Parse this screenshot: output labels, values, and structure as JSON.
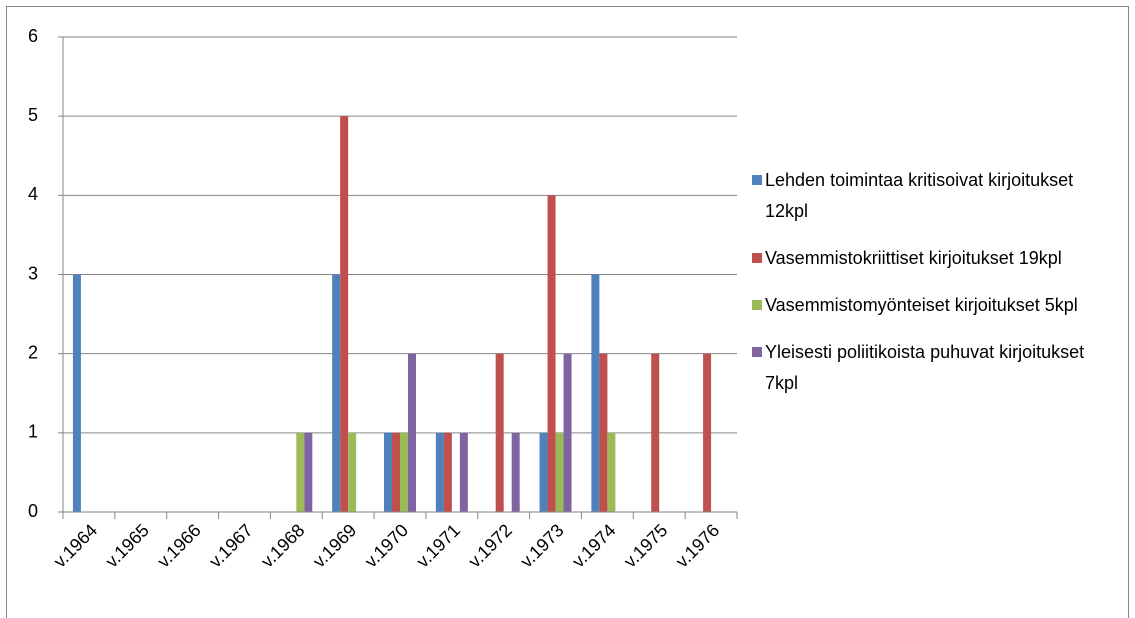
{
  "chart_data": {
    "type": "bar",
    "categories": [
      "v.1964",
      "v.1965",
      "v.1966",
      "v.1967",
      "v.1968",
      "v.1969",
      "v.1970",
      "v.1971",
      "v.1972",
      "v.1973",
      "v.1974",
      "v.1975",
      "v.1976"
    ],
    "series": [
      {
        "name": "Lehden toimintaa kritisoivat kirjoitukset 12kpl",
        "color": "#4f81bd",
        "values": [
          3,
          0,
          0,
          0,
          0,
          3,
          1,
          1,
          0,
          1,
          3,
          0,
          0
        ]
      },
      {
        "name": "Vasemmistokriittiset kirjoitukset 19kpl",
        "color": "#c0504d",
        "values": [
          0,
          0,
          0,
          0,
          0,
          5,
          1,
          1,
          2,
          4,
          2,
          2,
          2
        ]
      },
      {
        "name": "Vasemmistomyönteiset kirjoitukset 5kpl",
        "color": "#9bbb59",
        "values": [
          0,
          0,
          0,
          0,
          1,
          1,
          1,
          0,
          0,
          1,
          1,
          0,
          0
        ]
      },
      {
        "name": "Yleisesti poliitikoista puhuvat kirjoitukset 7kpl",
        "color": "#8064a2",
        "values": [
          0,
          0,
          0,
          0,
          1,
          0,
          2,
          1,
          1,
          2,
          0,
          0,
          0
        ]
      }
    ],
    "ylim": [
      0,
      6
    ],
    "yticks": [
      0,
      1,
      2,
      3,
      4,
      5,
      6
    ],
    "grid": true,
    "legend": "right"
  }
}
